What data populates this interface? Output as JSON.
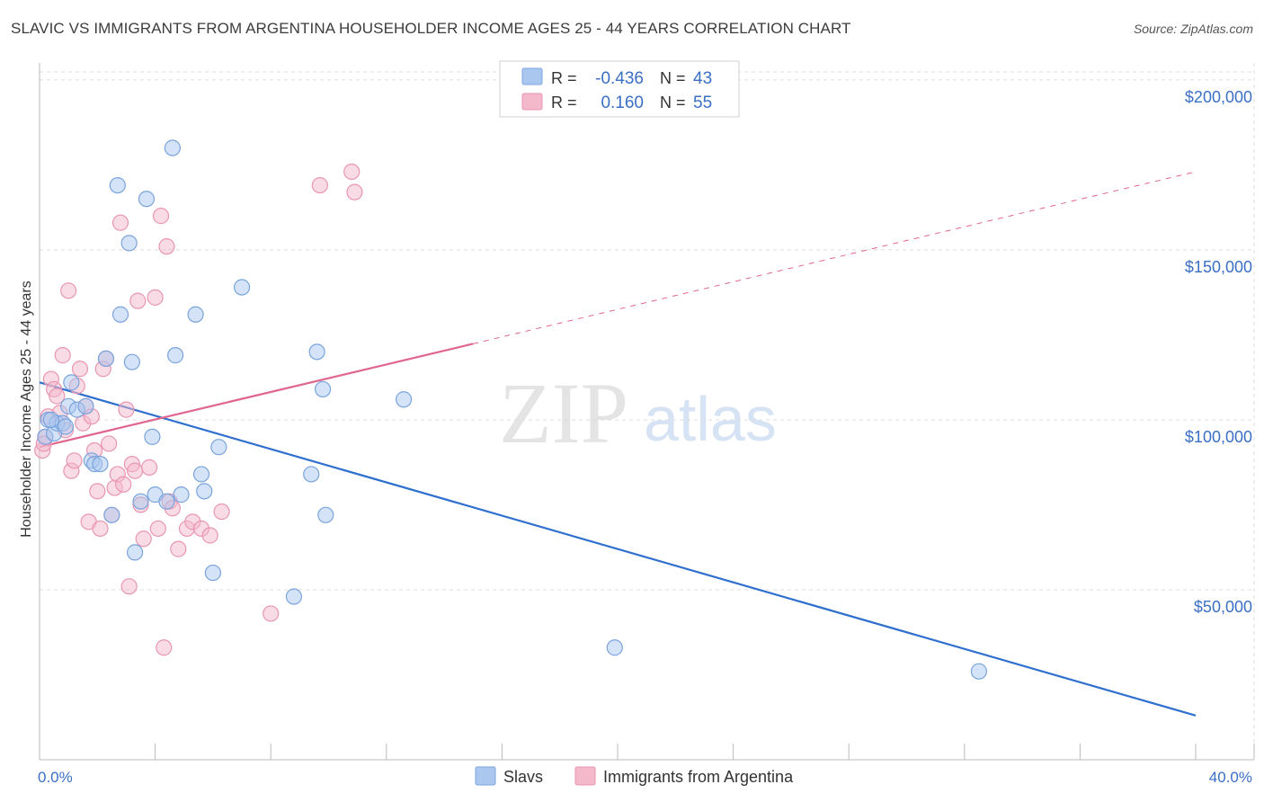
{
  "title": "SLAVIC VS IMMIGRANTS FROM ARGENTINA HOUSEHOLDER INCOME AGES 25 - 44 YEARS CORRELATION CHART",
  "source": "Source: ZipAtlas.com",
  "watermark": {
    "zip": "ZIP",
    "atlas": "atlas"
  },
  "colors": {
    "slavs_fill": "#a9c7ef",
    "slavs_stroke": "#7aa4dc",
    "slavs_line": "#2f6fce",
    "arg_fill": "#f4b8cb",
    "arg_stroke": "#e896b2",
    "arg_line": "#e0668e",
    "tick_text": "#3b6fc4",
    "grid": "#dddddd"
  },
  "legend": {
    "rows": [
      {
        "r_label": "R =",
        "r_value": "-0.436",
        "n_label": "N =",
        "n_value": "43"
      },
      {
        "r_label": "R =",
        "r_value": "0.160",
        "n_label": "N =",
        "n_value": "55"
      }
    ]
  },
  "chart_data": {
    "type": "scatter",
    "title": "SLAVIC VS IMMIGRANTS FROM ARGENTINA HOUSEHOLDER INCOME AGES 25 - 44 YEARS CORRELATION CHART",
    "xlabel": "",
    "ylabel": "Householder Income Ages 25 - 44 years",
    "xlim": [
      0,
      40
    ],
    "ylim": [
      0,
      205000
    ],
    "x_tick_labels": [
      {
        "value": 0,
        "label": "0.0%"
      },
      {
        "value": 40,
        "label": "40.0%"
      }
    ],
    "y_ticks": [
      {
        "value": 50000,
        "label": "$50,000"
      },
      {
        "value": 100000,
        "label": "$100,000"
      },
      {
        "value": 150000,
        "label": "$150,000"
      },
      {
        "value": 200000,
        "label": "$200,000"
      }
    ],
    "grid": true,
    "legend_position": "bottom",
    "series": [
      {
        "name": "Slavs",
        "r": -0.436,
        "n": 43,
        "trend": {
          "x0": 0,
          "y0": 111000,
          "x1": 40,
          "y1": 13000,
          "dashed_from": null
        },
        "points": [
          [
            0.2,
            95000
          ],
          [
            0.3,
            100000
          ],
          [
            0.5,
            96000
          ],
          [
            0.6,
            99000
          ],
          [
            0.8,
            99000
          ],
          [
            0.9,
            98000
          ],
          [
            1.0,
            104000
          ],
          [
            1.1,
            111000
          ],
          [
            1.3,
            103000
          ],
          [
            1.6,
            104000
          ],
          [
            1.8,
            88000
          ],
          [
            1.9,
            87000
          ],
          [
            2.1,
            87000
          ],
          [
            2.3,
            118000
          ],
          [
            2.5,
            72000
          ],
          [
            2.7,
            169000
          ],
          [
            2.8,
            131000
          ],
          [
            3.1,
            152000
          ],
          [
            3.2,
            117000
          ],
          [
            3.3,
            61000
          ],
          [
            3.5,
            76000
          ],
          [
            3.7,
            165000
          ],
          [
            3.9,
            95000
          ],
          [
            4.0,
            78000
          ],
          [
            4.4,
            76000
          ],
          [
            4.6,
            180000
          ],
          [
            4.7,
            119000
          ],
          [
            4.9,
            78000
          ],
          [
            5.4,
            131000
          ],
          [
            5.6,
            84000
          ],
          [
            5.7,
            79000
          ],
          [
            6.0,
            55000
          ],
          [
            6.2,
            92000
          ],
          [
            7.0,
            139000
          ],
          [
            8.8,
            48000
          ],
          [
            9.4,
            84000
          ],
          [
            9.6,
            120000
          ],
          [
            9.8,
            109000
          ],
          [
            9.9,
            72000
          ],
          [
            12.6,
            106000
          ],
          [
            19.9,
            33000
          ],
          [
            32.5,
            26000
          ],
          [
            0.4,
            100000
          ]
        ]
      },
      {
        "name": "Immigrants from Argentina",
        "r": 0.16,
        "n": 55,
        "trend": {
          "x0": 0,
          "y0": 92000,
          "x1": 40,
          "y1": 173000,
          "solid_until": 15.0
        },
        "points": [
          [
            0.1,
            91000
          ],
          [
            0.2,
            95000
          ],
          [
            0.3,
            101000
          ],
          [
            0.4,
            112000
          ],
          [
            0.5,
            109000
          ],
          [
            0.6,
            107000
          ],
          [
            0.7,
            102000
          ],
          [
            0.8,
            119000
          ],
          [
            0.9,
            97000
          ],
          [
            1.0,
            138000
          ],
          [
            1.1,
            85000
          ],
          [
            1.2,
            88000
          ],
          [
            1.3,
            110000
          ],
          [
            1.4,
            115000
          ],
          [
            1.5,
            99000
          ],
          [
            1.6,
            104000
          ],
          [
            1.7,
            70000
          ],
          [
            1.8,
            101000
          ],
          [
            1.9,
            91000
          ],
          [
            2.0,
            79000
          ],
          [
            2.1,
            68000
          ],
          [
            2.2,
            115000
          ],
          [
            2.3,
            118000
          ],
          [
            2.4,
            93000
          ],
          [
            2.5,
            72000
          ],
          [
            2.6,
            80000
          ],
          [
            2.7,
            84000
          ],
          [
            2.8,
            158000
          ],
          [
            2.9,
            81000
          ],
          [
            3.0,
            103000
          ],
          [
            3.1,
            51000
          ],
          [
            3.2,
            87000
          ],
          [
            3.3,
            85000
          ],
          [
            3.4,
            135000
          ],
          [
            3.5,
            75000
          ],
          [
            3.6,
            65000
          ],
          [
            3.8,
            86000
          ],
          [
            4.0,
            136000
          ],
          [
            4.1,
            68000
          ],
          [
            4.2,
            160000
          ],
          [
            4.3,
            33000
          ],
          [
            4.4,
            151000
          ],
          [
            4.5,
            76000
          ],
          [
            4.6,
            74000
          ],
          [
            4.8,
            62000
          ],
          [
            5.1,
            68000
          ],
          [
            5.3,
            70000
          ],
          [
            5.6,
            68000
          ],
          [
            5.9,
            66000
          ],
          [
            6.3,
            73000
          ],
          [
            8.0,
            43000
          ],
          [
            9.7,
            169000
          ],
          [
            10.8,
            173000
          ],
          [
            10.9,
            167000
          ],
          [
            0.15,
            93000
          ]
        ]
      }
    ]
  }
}
